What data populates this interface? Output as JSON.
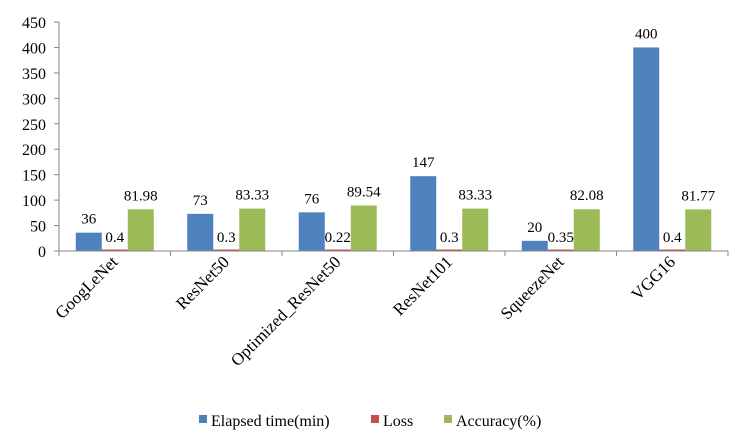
{
  "chart_data": {
    "type": "bar",
    "title": "",
    "xlabel": "",
    "ylabel": "",
    "categories": [
      "GoogLeNet",
      "ResNet50",
      "Optimized_ResNet50",
      "ResNet101",
      "SqueezeNet",
      "VGG16"
    ],
    "series": [
      {
        "name": "Elapsed time(min)",
        "color": "#4f81bd",
        "values": [
          36,
          73,
          76,
          147,
          20,
          400
        ],
        "labels": [
          "36",
          "73",
          "76",
          "147",
          "20",
          "400"
        ]
      },
      {
        "name": "Loss",
        "color": "#c0504d",
        "values": [
          0.4,
          0.3,
          0.22,
          0.3,
          0.35,
          0.4
        ],
        "labels": [
          "0.4",
          "0.3",
          "0.22",
          "0.3",
          "0.35",
          "0.4"
        ]
      },
      {
        "name": "Accuracy(%)",
        "color": "#9bbb59",
        "values": [
          81.98,
          83.33,
          89.54,
          83.33,
          82.08,
          81.77
        ],
        "labels": [
          "81.98",
          "83.33",
          "89.54",
          "83.33",
          "82.08",
          "81.77"
        ]
      }
    ],
    "ylim": [
      0,
      450
    ],
    "yticks": [
      "0",
      "50",
      "100",
      "150",
      "200",
      "250",
      "300",
      "350",
      "400",
      "450"
    ],
    "grid": false,
    "legend": "bottom"
  }
}
